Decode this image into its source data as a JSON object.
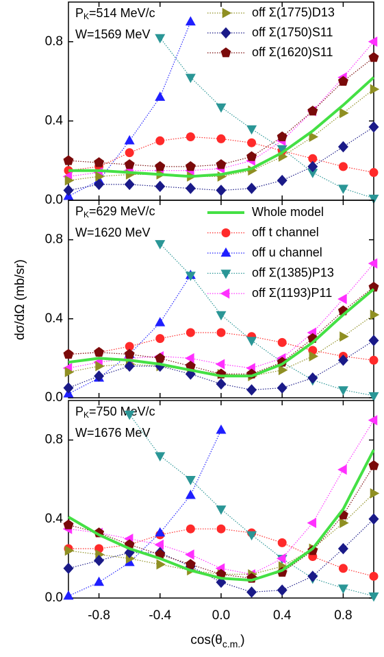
{
  "chart_data": {
    "type": "line",
    "x_label": [
      "cos(θ",
      "c.m.",
      ")"
    ],
    "y_label": "dσ/dΩ (mb/sr)",
    "x": [
      -1,
      -0.8,
      -0.6,
      -0.4,
      -0.2,
      0,
      0.2,
      0.4,
      0.6,
      0.8,
      1
    ],
    "xlim": [
      -1,
      1
    ],
    "xticks": [
      -0.8,
      -0.4,
      {
        "value": 0,
        "label": "0.0"
      },
      0.4,
      0.8
    ],
    "series": [
      {
        "name": "Whole model",
        "color": "#44e044",
        "marker": "none"
      },
      {
        "name": "off t channel",
        "color": "#ff2a2a",
        "marker": "circle"
      },
      {
        "name": "off u channel",
        "color": "#1f1fff",
        "marker": "triangle-up"
      },
      {
        "name": "off Σ(1385)P13",
        "color": "#2a9696",
        "marker": "triangle-down"
      },
      {
        "name": "off Σ(1193)P11",
        "color": "#ff30ff",
        "marker": "triangle-left"
      },
      {
        "name": "off Σ(1775)D13",
        "color": "#8f8f22",
        "marker": "triangle-right"
      },
      {
        "name": "off Σ(1750)S11",
        "color": "#1a1a88",
        "marker": "diamond"
      },
      {
        "name": "off Σ(1620)S11",
        "color": "#7a0a0a",
        "marker": "pentagon"
      }
    ],
    "panels": [
      {
        "annotation": [
          [
            "P",
            "K",
            "=514 MeV/c"
          ],
          "W=1569 MeV"
        ],
        "ylim": [
          0,
          1
        ],
        "yticks": [
          {
            "value": 0,
            "label": "0.0"
          },
          0.4,
          0.8
        ],
        "values": [
          [
            0.15,
            0.15,
            0.14,
            0.13,
            0.12,
            0.13,
            0.16,
            0.24,
            0.35,
            0.48,
            0.62
          ],
          [
            0.15,
            0.17,
            0.24,
            0.3,
            0.32,
            0.31,
            0.29,
            0.25,
            0.21,
            0.17,
            0.14
          ],
          [
            0.02,
            0.1,
            0.3,
            0.52,
            0.9,
            null,
            null,
            null,
            null,
            null,
            null
          ],
          [
            null,
            null,
            null,
            0.82,
            0.62,
            0.47,
            0.36,
            0.26,
            0.14,
            0.06,
            0.01
          ],
          [
            0.12,
            0.14,
            0.15,
            0.15,
            0.15,
            0.16,
            0.2,
            0.3,
            0.45,
            0.62,
            0.8
          ],
          [
            0.1,
            0.12,
            0.13,
            0.13,
            0.12,
            0.12,
            0.15,
            0.22,
            0.32,
            0.44,
            0.56
          ],
          [
            0.05,
            0.08,
            0.08,
            0.07,
            0.06,
            0.05,
            0.06,
            0.1,
            0.17,
            0.27,
            0.37
          ],
          [
            0.2,
            0.19,
            0.18,
            0.17,
            0.17,
            0.18,
            0.22,
            0.32,
            0.45,
            0.6,
            0.72
          ]
        ]
      },
      {
        "annotation": [
          [
            "P",
            "K",
            "=629 MeV/c"
          ],
          "W=1620 MeV"
        ],
        "ylim": [
          0,
          1
        ],
        "yticks": [
          {
            "value": 0,
            "label": "0.0"
          },
          0.4,
          0.8
        ],
        "values": [
          [
            0.18,
            0.2,
            0.19,
            0.17,
            0.14,
            0.11,
            0.11,
            0.17,
            0.28,
            0.42,
            0.55
          ],
          [
            0.22,
            0.23,
            0.26,
            0.3,
            0.33,
            0.33,
            0.31,
            0.28,
            0.24,
            0.21,
            0.19
          ],
          [
            0.02,
            0.1,
            0.22,
            0.38,
            0.62,
            null,
            null,
            null,
            null,
            null,
            null
          ],
          [
            null,
            null,
            null,
            0.78,
            0.62,
            0.42,
            0.29,
            0.18,
            0.09,
            0.04,
            0.01
          ],
          [
            0.15,
            0.18,
            0.2,
            0.21,
            0.2,
            0.17,
            0.15,
            0.2,
            0.33,
            0.5,
            0.68
          ],
          [
            0.13,
            0.16,
            0.17,
            0.16,
            0.14,
            0.12,
            0.11,
            0.14,
            0.21,
            0.31,
            0.42
          ],
          [
            0.05,
            0.11,
            0.16,
            0.16,
            0.12,
            0.07,
            0.04,
            0.05,
            0.1,
            0.19,
            0.29
          ],
          [
            0.22,
            0.23,
            0.22,
            0.2,
            0.16,
            0.12,
            0.12,
            0.18,
            0.3,
            0.44,
            0.56
          ]
        ]
      },
      {
        "annotation": [
          [
            "P",
            "K",
            "=750 MeV/c"
          ],
          "W=1676 MeV"
        ],
        "ylim": [
          0,
          1
        ],
        "yticks": [
          {
            "value": 0,
            "label": "0.0"
          },
          0.4,
          0.8
        ],
        "values": [
          [
            0.41,
            0.32,
            0.25,
            0.2,
            0.14,
            0.1,
            0.09,
            0.14,
            0.25,
            0.45,
            0.75
          ],
          [
            0.25,
            0.25,
            0.27,
            0.32,
            0.35,
            0.35,
            0.33,
            0.28,
            0.21,
            0.15,
            0.11
          ],
          [
            0.01,
            0.08,
            0.18,
            0.33,
            0.52,
            0.85,
            null,
            null,
            null,
            null,
            null
          ],
          [
            null,
            null,
            0.93,
            0.72,
            0.6,
            0.45,
            0.32,
            0.2,
            0.1,
            0.05,
            0.01
          ],
          [
            0.35,
            0.33,
            0.3,
            0.27,
            0.22,
            0.15,
            0.12,
            0.2,
            0.38,
            0.65,
            0.9
          ],
          [
            0.24,
            0.22,
            0.2,
            0.17,
            0.14,
            0.12,
            0.12,
            0.16,
            0.25,
            0.38,
            0.53
          ],
          [
            0.15,
            0.19,
            0.23,
            0.23,
            0.16,
            0.08,
            0.03,
            0.04,
            0.11,
            0.25,
            0.4
          ],
          [
            0.37,
            0.33,
            0.27,
            0.22,
            0.17,
            0.12,
            0.1,
            0.13,
            0.24,
            0.42,
            0.67
          ]
        ]
      }
    ]
  }
}
